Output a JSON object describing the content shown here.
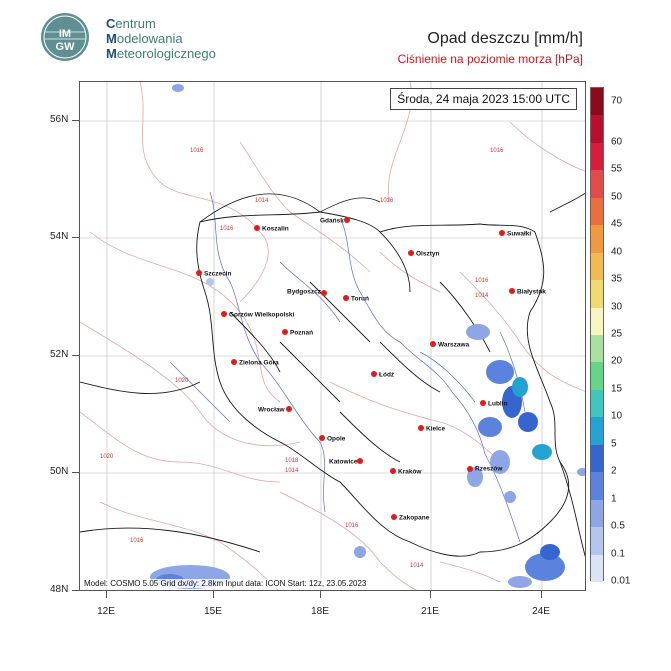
{
  "logo": {
    "lines": [
      {
        "cap": "C",
        "rest": "entrum"
      },
      {
        "cap": "M",
        "rest": "odelowania"
      },
      {
        "cap": "M",
        "rest": "eteorologicznego"
      }
    ],
    "badge": "IMGW"
  },
  "title": {
    "main": "Opad deszczu [mm/h]",
    "sub": "Ciśnienie na poziomie morza [hPa]"
  },
  "date": "Środa, 24 maja 2023 15:00 UTC",
  "footer": "Model: COSMO 5.05  Grid dx/dy: 2.8km  Input data: ICON  Start: 12z, 23.05.2023",
  "axes": {
    "lat_labels": [
      "56N",
      "54N",
      "52N",
      "50N",
      "48N"
    ],
    "lon_labels": [
      "12E",
      "15E",
      "18E",
      "21E",
      "24E"
    ]
  },
  "legend": {
    "levels": [
      "0.01",
      "0.1",
      "0.5",
      "1",
      "2",
      "5",
      "10",
      "15",
      "20",
      "25",
      "30",
      "35",
      "40",
      "45",
      "50",
      "55",
      "60",
      "70"
    ],
    "colors": [
      "#d9e4f5",
      "#b4c5ee",
      "#8ea6e6",
      "#5b82dc",
      "#3566d0",
      "#23a2d3",
      "#3fc6c0",
      "#64d486",
      "#a8e0a0",
      "#f7f6c0",
      "#f3da70",
      "#f2bb50",
      "#f0993f",
      "#ec6e3c",
      "#e34a4a",
      "#d61d3c",
      "#b8102a",
      "#8c0a18"
    ]
  },
  "cities": [
    {
      "name": "Gdańsk"
    },
    {
      "name": "Koszalin"
    },
    {
      "name": "Suwałki"
    },
    {
      "name": "Olsztyn"
    },
    {
      "name": "Szczecin"
    },
    {
      "name": "Białystok"
    },
    {
      "name": "Bydgoszcz"
    },
    {
      "name": "Toruń"
    },
    {
      "name": "Gorzów Wielkopolski"
    },
    {
      "name": "Poznań"
    },
    {
      "name": "Warszawa"
    },
    {
      "name": "Zielona Góra"
    },
    {
      "name": "Łódź"
    },
    {
      "name": "Lublin"
    },
    {
      "name": "Wrocław"
    },
    {
      "name": "Opole"
    },
    {
      "name": "Kielce"
    },
    {
      "name": "Katowice"
    },
    {
      "name": "Kraków"
    },
    {
      "name": "Rzeszów"
    },
    {
      "name": "Zakopane"
    }
  ],
  "isobars": [
    "1016",
    "1016",
    "1016",
    "1014",
    "1014",
    "1016",
    "1020",
    "1020",
    "1018",
    "1016",
    "1016",
    "1014",
    "1014",
    "1016"
  ]
}
